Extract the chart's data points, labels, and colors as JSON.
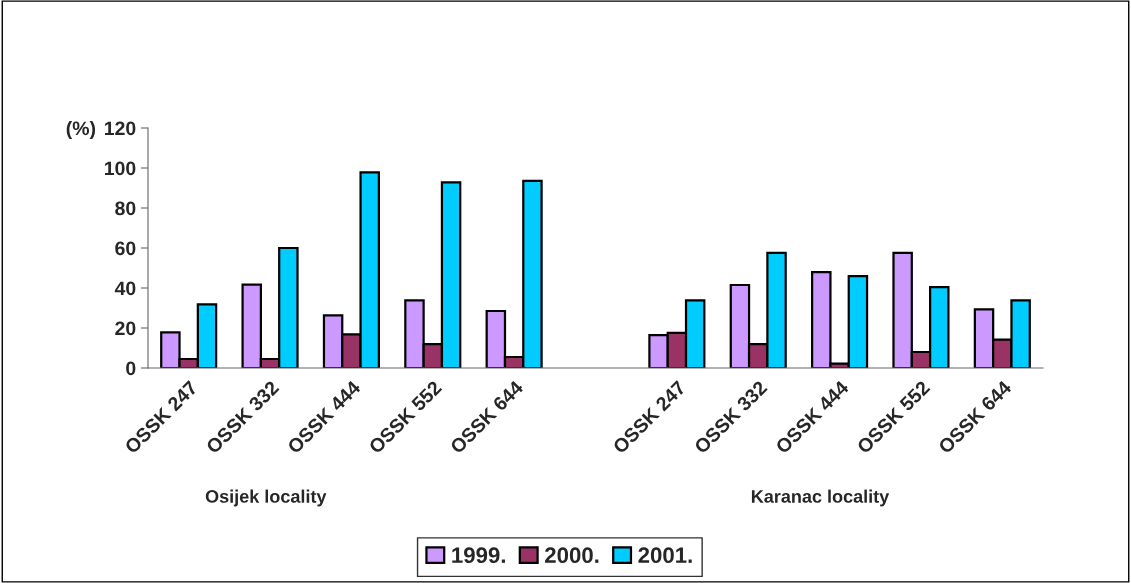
{
  "chart_data": {
    "type": "bar",
    "ylabel": "(%)",
    "categories": [
      "OSSK 247",
      "OSSK 332",
      "OSSK 444",
      "OSSK 552",
      "OSSK 644",
      null,
      "OSSK 247",
      "OSSK 332",
      "OSSK 444",
      "OSSK 552",
      "OSSK 644"
    ],
    "series": [
      {
        "name": "1999.",
        "color": "#cc99ff",
        "values": [
          17.8,
          41.7,
          26.3,
          33.8,
          28.5,
          null,
          16.4,
          41.5,
          47.9,
          57.6,
          29.3
        ]
      },
      {
        "name": "2000.",
        "color": "#993366",
        "values": [
          4.5,
          4.5,
          16.8,
          11.9,
          5.5,
          null,
          17.6,
          11.9,
          2.2,
          8.0,
          14.2
        ]
      },
      {
        "name": "2001.",
        "color": "#00ccff",
        "values": [
          31.8,
          60,
          97.8,
          92.8,
          93.6,
          null,
          33.8,
          57.6,
          45.9,
          40.4,
          33.8
        ]
      }
    ],
    "ylim": [
      0,
      120
    ],
    "yticks": [
      0,
      20,
      40,
      60,
      80,
      100,
      120
    ],
    "grid": false,
    "legend": "bottom",
    "annotations": [
      "Osijek locality",
      "Karanac locality"
    ]
  }
}
